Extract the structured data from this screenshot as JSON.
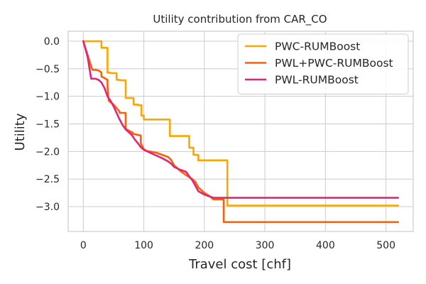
{
  "chart_data": {
    "type": "line",
    "title": "Utility contribution from CAR_CO",
    "xlabel": "Travel cost [chf]",
    "ylabel": "Utility",
    "xlim": [
      -25,
      545
    ],
    "ylim": [
      -3.45,
      0.18
    ],
    "xticks": [
      0,
      100,
      200,
      300,
      400,
      500
    ],
    "yticks": [
      0.0,
      -0.5,
      -1.0,
      -1.5,
      -2.0,
      -2.5,
      -3.0
    ],
    "ytick_labels": [
      "0.0",
      "−0.5",
      "−1.0",
      "−1.5",
      "−2.0",
      "−2.5",
      "−3.0"
    ],
    "grid": true,
    "legend_position": "top-right",
    "series": [
      {
        "name": "PWC-RUMBoost",
        "color": "#ffa500",
        "x": [
          0,
          30,
          30,
          40,
          40,
          45,
          45,
          55,
          55,
          60,
          60,
          70,
          70,
          83,
          83,
          90,
          90,
          96,
          96,
          100,
          100,
          143,
          143,
          175,
          175,
          182,
          182,
          190,
          190,
          238,
          238,
          520
        ],
        "y": [
          0,
          0,
          -0.12,
          -0.12,
          -0.57,
          -0.57,
          -0.58,
          -0.58,
          -0.7,
          -0.7,
          -0.71,
          -0.71,
          -1.03,
          -1.03,
          -1.15,
          -1.15,
          -1.16,
          -1.16,
          -1.35,
          -1.35,
          -1.42,
          -1.42,
          -1.72,
          -1.72,
          -1.93,
          -1.93,
          -2.06,
          -2.06,
          -2.16,
          -2.16,
          -2.98,
          -2.98
        ]
      },
      {
        "name": "PWL+PWC-RUMBoost",
        "color": "#ff5f00",
        "x": [
          0,
          10,
          15,
          20,
          25,
          28,
          30,
          30,
          35,
          40,
          40,
          42,
          50,
          58,
          60,
          60,
          70,
          70,
          80,
          82,
          82,
          95,
          95,
          100,
          105,
          120,
          130,
          140,
          145,
          150,
          160,
          170,
          180,
          185,
          190,
          200,
          210,
          215,
          225,
          232,
          232,
          520
        ],
        "y": [
          0,
          -0.35,
          -0.52,
          -0.52,
          -0.53,
          -0.55,
          -0.57,
          -0.64,
          -0.67,
          -0.7,
          -0.82,
          -1.08,
          -1.15,
          -1.25,
          -1.28,
          -1.3,
          -1.3,
          -1.59,
          -1.65,
          -1.66,
          -1.68,
          -1.71,
          -1.85,
          -1.96,
          -1.99,
          -2.02,
          -2.06,
          -2.1,
          -2.15,
          -2.25,
          -2.35,
          -2.43,
          -2.5,
          -2.55,
          -2.65,
          -2.75,
          -2.82,
          -2.87,
          -2.87,
          -2.87,
          -3.28,
          -3.28
        ]
      },
      {
        "name": "PWL-RUMBoost",
        "color": "#e0267a",
        "x": [
          0,
          7,
          13,
          20,
          25,
          30,
          35,
          40,
          45,
          50,
          55,
          60,
          65,
          70,
          75,
          80,
          85,
          90,
          95,
          100,
          110,
          120,
          130,
          140,
          145,
          150,
          160,
          170,
          175,
          180,
          185,
          190,
          200,
          210,
          215,
          220,
          240,
          260,
          300,
          400,
          520
        ],
        "y": [
          0,
          -0.28,
          -0.68,
          -0.68,
          -0.7,
          -0.75,
          -0.85,
          -1.0,
          -1.08,
          -1.18,
          -1.3,
          -1.42,
          -1.52,
          -1.6,
          -1.65,
          -1.7,
          -1.78,
          -1.85,
          -1.92,
          -1.97,
          -2.02,
          -2.07,
          -2.12,
          -2.18,
          -2.22,
          -2.28,
          -2.33,
          -2.37,
          -2.45,
          -2.52,
          -2.62,
          -2.72,
          -2.78,
          -2.82,
          -2.84,
          -2.84,
          -2.84,
          -2.84,
          -2.84,
          -2.84,
          -2.84
        ]
      }
    ]
  }
}
